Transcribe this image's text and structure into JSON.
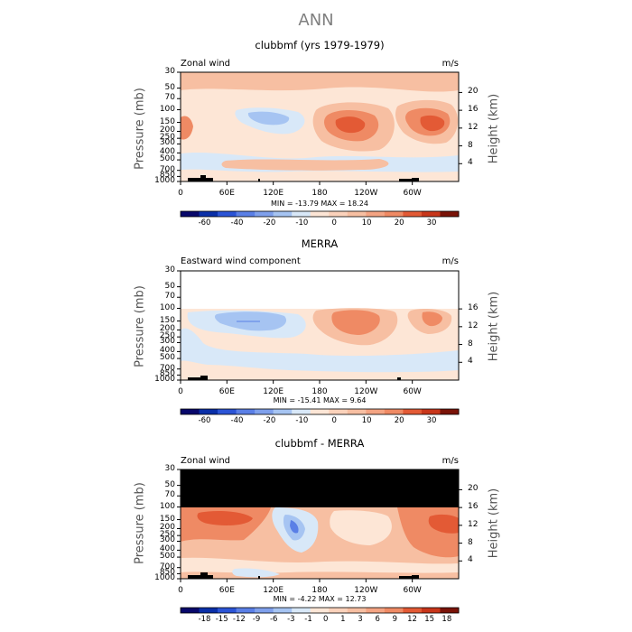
{
  "title": "ANN",
  "colors": {
    "bg_plot": "#ffffff",
    "deep_blue": "#08086b",
    "blue": "#2b54d6",
    "mid_blue": "#5a7fe6",
    "light_blue": "#a6c4f2",
    "pale_blue": "#d8e8f8",
    "pale_orange": "#fde6d6",
    "light_orange": "#f7bfa2",
    "orange": "#ef8a64",
    "red_orange": "#e35a35",
    "dark_red": "#7a1308",
    "masked": "#000000"
  },
  "chart_data": [
    {
      "type": "heatmap",
      "title": "clubbmf (yrs 1979-1979)",
      "left_label": "Zonal wind",
      "right_label": "m/s",
      "ylabel": "Pressure (mb)",
      "ylabel_right": "Height (km)",
      "yticks": [
        "30",
        "50",
        "70",
        "100",
        "150",
        "200",
        "250",
        "300",
        "400",
        "500",
        "700",
        "850",
        "1000"
      ],
      "height_ticks": [
        "20",
        "16",
        "12",
        "8",
        "4"
      ],
      "xticks": [
        "0",
        "60E",
        "120E",
        "180",
        "120W",
        "60W"
      ],
      "min": "-13.79",
      "max": "18.24",
      "minmax_text": "MIN = -13.79   MAX =  18.24",
      "colorbar_labels": [
        "-60",
        "-40",
        "-20",
        "-10",
        "0",
        "10",
        "20",
        "30"
      ],
      "features": [
        "westerly jet maxima near 180 and 60W at ~150 mb",
        "easterly band near 120E at 100–150 mb"
      ]
    },
    {
      "type": "heatmap",
      "title": "MERRA",
      "left_label": "Eastward wind component",
      "right_label": "m/s",
      "ylabel": "Pressure (mb)",
      "ylabel_right": "Height (km)",
      "yticks": [
        "30",
        "50",
        "70",
        "100",
        "150",
        "200",
        "250",
        "300",
        "400",
        "500",
        "700",
        "850",
        "1000"
      ],
      "height_ticks": [
        "16",
        "12",
        "8",
        "4"
      ],
      "xticks": [
        "0",
        "60E",
        "120E",
        "180",
        "120W",
        "60W"
      ],
      "min": "-15.41",
      "max": "9.64",
      "minmax_text": "MIN = -15.41   MAX =    9.64",
      "colorbar_labels": [
        "-60",
        "-40",
        "-20",
        "-10",
        "0",
        "10",
        "20",
        "30"
      ],
      "features": [
        "no data above 100 mb",
        "easterly band centered near 90E at 150–200 mb"
      ]
    },
    {
      "type": "heatmap",
      "title": "clubbmf - MERRA",
      "left_label": "Zonal wind",
      "right_label": "m/s",
      "ylabel": "Pressure (mb)",
      "ylabel_right": "Height (km)",
      "yticks": [
        "30",
        "50",
        "70",
        "100",
        "150",
        "200",
        "250",
        "300",
        "400",
        "500",
        "700",
        "850",
        "1000"
      ],
      "height_ticks": [
        "20",
        "16",
        "12",
        "8",
        "4"
      ],
      "xticks": [
        "0",
        "60E",
        "120E",
        "180",
        "120W",
        "60W"
      ],
      "min": "-4.22",
      "max": "12.73",
      "minmax_text": "MIN =  -4.22   MAX =  12.73",
      "colorbar_labels": [
        "-18",
        "-15",
        "-12",
        "-9",
        "-6",
        "-3",
        "-1",
        "0",
        "1",
        "3",
        "6",
        "9",
        "12",
        "15",
        "18"
      ],
      "features": [
        "masked (black) above 100 mb",
        "positive differences dominate the upper troposphere"
      ]
    }
  ]
}
